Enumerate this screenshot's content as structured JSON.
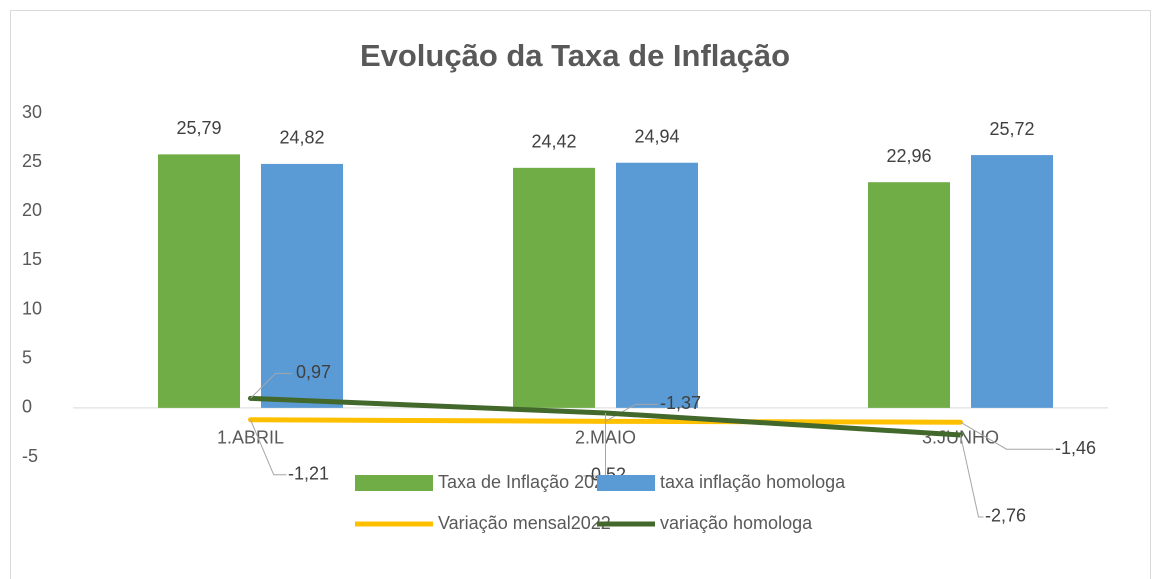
{
  "chart_data": {
    "type": "bar",
    "title": "Evolução da Taxa de Inflação",
    "categories": [
      "1.ABRIL",
      "2.MAIO",
      "3.JUNHO"
    ],
    "series": [
      {
        "name": "Taxa de Inflação 2022",
        "type": "bar",
        "color": "#70ad47",
        "values": [
          25.79,
          24.42,
          22.96
        ],
        "value_labels": [
          "25,79",
          "24,42",
          "22,96"
        ]
      },
      {
        "name": "taxa inflação homologa",
        "type": "bar",
        "color": "#5b9bd5",
        "values": [
          24.82,
          24.94,
          25.72
        ],
        "value_labels": [
          "24,82",
          "24,94",
          "25,72"
        ]
      },
      {
        "name": "Variação mensal2022",
        "type": "line",
        "color": "#ffc000",
        "values": [
          -1.21,
          -1.37,
          -1.46
        ],
        "value_labels": [
          "-1,21",
          "-1,37",
          "-1,46"
        ]
      },
      {
        "name": "variação homologa",
        "type": "line",
        "color": "#43682b",
        "values": [
          0.97,
          -0.52,
          -2.76
        ],
        "value_labels": [
          "0,97",
          "-0,52",
          "-2,76"
        ]
      }
    ],
    "ylim": [
      -5,
      30
    ],
    "yticks": [
      -5,
      0,
      5,
      10,
      15,
      20,
      25,
      30
    ],
    "legend": "bottom"
  }
}
